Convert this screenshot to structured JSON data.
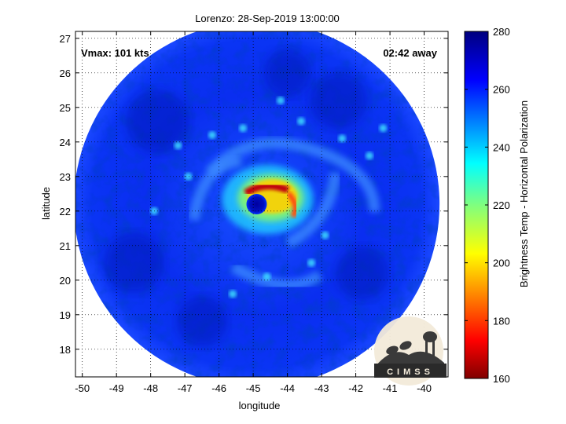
{
  "title": "Lorenzo: 28-Sep-2019 13:00:00",
  "annotations": {
    "vmax": "Vmax: 101 kts",
    "time_away": "02:42 away"
  },
  "axes": {
    "xlabel": "longitude",
    "ylabel": "latitude",
    "xlim": [
      -50.2,
      -39.3
    ],
    "ylim": [
      17.2,
      27.2
    ],
    "xticks": [
      -50,
      -49,
      -48,
      -47,
      -46,
      -45,
      -44,
      -43,
      -42,
      -41,
      -40
    ],
    "yticks": [
      18,
      19,
      20,
      21,
      22,
      23,
      24,
      25,
      26,
      27
    ],
    "grid": true
  },
  "colorbar": {
    "label": "Brightness Temp - Horizontal Polarization",
    "range": [
      160,
      280
    ],
    "ticks": [
      160,
      180,
      200,
      220,
      240,
      260,
      280
    ],
    "colormap": "jet-reversed"
  },
  "storm": {
    "name": "Lorenzo",
    "center_lon": -44.9,
    "center_lat": 22.2,
    "scan_radius_deg": 5.35,
    "eye_temp": 270,
    "eyewall_min_temp": 168,
    "background_temp": 265
  },
  "logo": {
    "text": "CIMSS"
  },
  "colors": {
    "eye": "#00008b",
    "eyewall": "#b0000a",
    "background": "#0a2cf0",
    "deep": "#001a9c"
  }
}
